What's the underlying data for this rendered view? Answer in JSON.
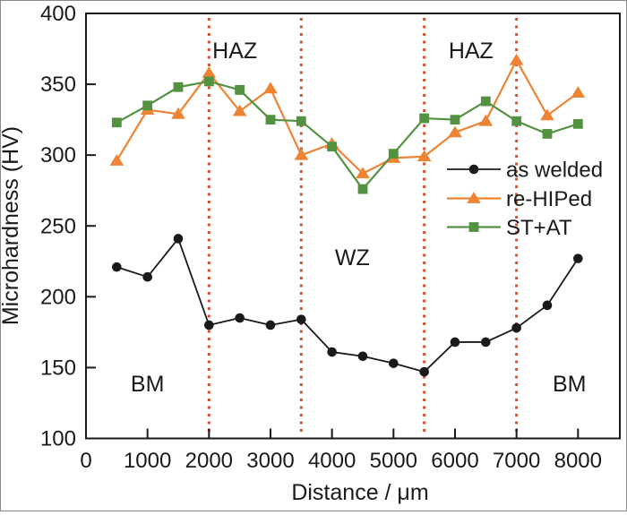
{
  "figure": {
    "background": "#ffffff",
    "frame_color": "#8a8a8a",
    "axis_color": "#1a1a1a"
  },
  "chart_data": {
    "type": "line",
    "title": "",
    "xlabel": "Distance / μm",
    "ylabel": "Microhardness (HV)",
    "xlim": [
      0,
      8680
    ],
    "ylim": [
      100,
      400
    ],
    "xticks": [
      0,
      1000,
      2000,
      3000,
      4000,
      5000,
      6000,
      7000,
      8000
    ],
    "yticks": [
      100,
      150,
      200,
      250,
      300,
      350,
      400
    ],
    "grid": false,
    "legend_position": "inside-right-middle",
    "x": [
      500,
      1000,
      1500,
      2000,
      2500,
      3000,
      3500,
      4000,
      4500,
      5000,
      5500,
      6000,
      6500,
      7000,
      7500,
      8000
    ],
    "series": [
      {
        "name": "as welded",
        "color": "#1a1a1a",
        "marker": "circle",
        "values": [
          221,
          214,
          241,
          180,
          185,
          180,
          184,
          161,
          158,
          153,
          147,
          168,
          168,
          178,
          194,
          227
        ]
      },
      {
        "name": "re-HIPed",
        "color": "#EE8333",
        "marker": "triangle",
        "values": [
          296,
          332,
          329,
          358,
          331,
          347,
          300,
          308,
          287,
          298,
          299,
          316,
          324,
          367,
          328,
          344
        ]
      },
      {
        "name": "ST+AT",
        "color": "#539241",
        "marker": "square",
        "values": [
          323,
          335,
          348,
          352,
          346,
          325,
          324,
          306,
          276,
          301,
          326,
          325,
          338,
          324,
          315,
          322
        ]
      }
    ],
    "zone_boundaries": {
      "x_values": [
        2000,
        3500,
        5500,
        7000
      ],
      "color": "#D54F31",
      "style": "dotted"
    },
    "annotations": [
      {
        "text": "BM",
        "x": 1000,
        "y": 139
      },
      {
        "text": "HAZ",
        "x": 2420,
        "y": 374
      },
      {
        "text": "WZ",
        "x": 4330,
        "y": 228
      },
      {
        "text": "HAZ",
        "x": 6260,
        "y": 374
      },
      {
        "text": "BM",
        "x": 7860,
        "y": 139
      }
    ]
  }
}
